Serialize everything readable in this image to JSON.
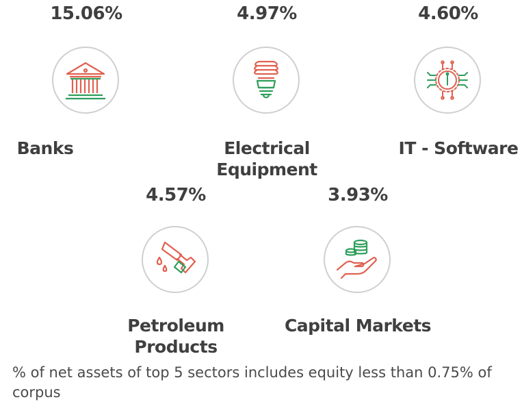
{
  "chart_data": {
    "type": "table",
    "categories": [
      "Banks",
      "Electrical Equipment",
      "IT - Software",
      "Petroleum Products",
      "Capital Markets"
    ],
    "values": [
      15.06,
      4.97,
      4.6,
      4.57,
      3.93
    ],
    "unit": "%"
  },
  "sectors": [
    {
      "pct": "15.06%",
      "name": "Banks",
      "icon": "bank-icon"
    },
    {
      "pct": "4.97%",
      "name": "Electrical Equipment",
      "icon": "light-bulb-icon"
    },
    {
      "pct": "4.60%",
      "name": "IT - Software",
      "icon": "chip-icon"
    },
    {
      "pct": "4.57%",
      "name": "Petroleum Products",
      "icon": "fuel-nozzle-icon"
    },
    {
      "pct": "3.93%",
      "name": "Capital Markets",
      "icon": "coins-hand-icon"
    }
  ],
  "footnote": "% of net assets of top 5 sectors includes equity less than 0.75% of corpus",
  "colors": {
    "green": "#2e9e5b",
    "red": "#e0604f",
    "ring": "#cfcfcf",
    "text": "#3f3f3f"
  }
}
